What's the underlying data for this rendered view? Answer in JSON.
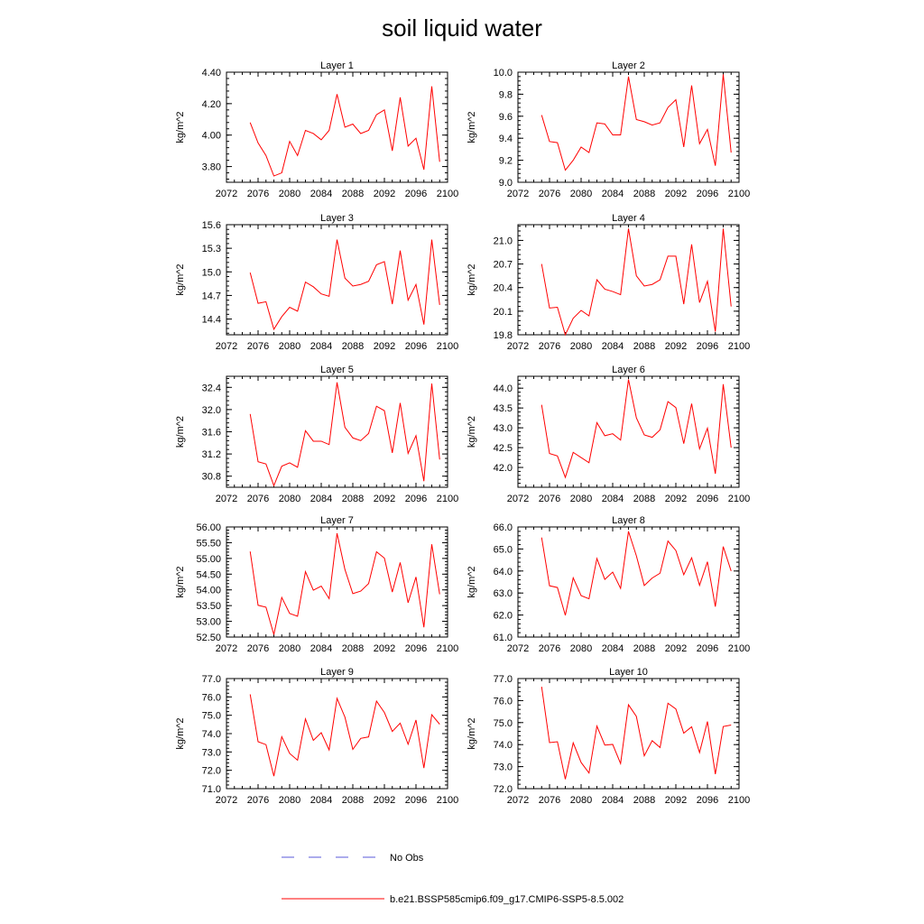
{
  "title": "soil liquid water",
  "legend": [
    {
      "label": "No Obs",
      "color": "#5a5ad8",
      "dash": "dashed"
    },
    {
      "label": "b.e21.BSSP585cmip6.f09_g17.CMIP6-SSP5-8.5.002",
      "color": "#ff0000",
      "dash": "solid"
    }
  ],
  "chart_data": [
    {
      "type": "line",
      "title": "Layer 1",
      "ylabel": "kg/m^2",
      "xlim": [
        2072,
        2100
      ],
      "ylim": [
        3.7,
        4.4
      ],
      "xticks": [
        "2072",
        "2076",
        "2080",
        "2084",
        "2088",
        "2092",
        "2096",
        "2100"
      ],
      "yticks": [
        "3.80",
        "4.00",
        "4.20",
        "4.40"
      ],
      "x": [
        2075,
        2076,
        2077,
        2078,
        2079,
        2080,
        2081,
        2082,
        2083,
        2084,
        2085,
        2086,
        2087,
        2088,
        2089,
        2090,
        2091,
        2092,
        2093,
        2094,
        2095,
        2096,
        2097,
        2098,
        2099
      ],
      "series": [
        {
          "name": "b.e21.BSSP585cmip6.f09_g17.CMIP6-SSP5-8.5.002",
          "color": "#ff0000",
          "values": [
            4.08,
            3.95,
            3.87,
            3.74,
            3.76,
            3.96,
            3.87,
            4.03,
            4.01,
            3.97,
            4.03,
            4.26,
            4.05,
            4.07,
            4.01,
            4.03,
            4.13,
            4.16,
            3.9,
            4.24,
            3.93,
            3.98,
            3.78,
            4.31,
            3.83
          ]
        }
      ]
    },
    {
      "type": "line",
      "title": "Layer 2",
      "ylabel": "kg/m^2",
      "xlim": [
        2072,
        2100
      ],
      "ylim": [
        9.0,
        10.0
      ],
      "xticks": [
        "2072",
        "2076",
        "2080",
        "2084",
        "2088",
        "2092",
        "2096",
        "2100"
      ],
      "yticks": [
        "9.0",
        "9.2",
        "9.4",
        "9.6",
        "9.8",
        "10.0"
      ],
      "x": [
        2075,
        2076,
        2077,
        2078,
        2079,
        2080,
        2081,
        2082,
        2083,
        2084,
        2085,
        2086,
        2087,
        2088,
        2089,
        2090,
        2091,
        2092,
        2093,
        2094,
        2095,
        2096,
        2097,
        2098,
        2099
      ],
      "series": [
        {
          "name": "b.e21.BSSP585cmip6.f09_g17.CMIP6-SSP5-8.5.002",
          "color": "#ff0000",
          "values": [
            9.61,
            9.37,
            9.36,
            9.11,
            9.2,
            9.32,
            9.27,
            9.54,
            9.53,
            9.43,
            9.43,
            9.96,
            9.57,
            9.55,
            9.52,
            9.54,
            9.68,
            9.75,
            9.32,
            9.88,
            9.35,
            9.48,
            9.15,
            9.98,
            9.27
          ]
        }
      ]
    },
    {
      "type": "line",
      "title": "Layer 3",
      "ylabel": "kg/m^2",
      "xlim": [
        2072,
        2100
      ],
      "ylim": [
        14.2,
        15.6
      ],
      "xticks": [
        "2072",
        "2076",
        "2080",
        "2084",
        "2088",
        "2092",
        "2096",
        "2100"
      ],
      "yticks": [
        "14.4",
        "14.7",
        "15.0",
        "15.3",
        "15.6"
      ],
      "x": [
        2075,
        2076,
        2077,
        2078,
        2079,
        2080,
        2081,
        2082,
        2083,
        2084,
        2085,
        2086,
        2087,
        2088,
        2089,
        2090,
        2091,
        2092,
        2093,
        2094,
        2095,
        2096,
        2097,
        2098,
        2099
      ],
      "series": [
        {
          "name": "b.e21.BSSP585cmip6.f09_g17.CMIP6-SSP5-8.5.002",
          "color": "#ff0000",
          "values": [
            14.99,
            14.6,
            14.62,
            14.27,
            14.43,
            14.55,
            14.5,
            14.87,
            14.81,
            14.72,
            14.69,
            15.41,
            14.92,
            14.82,
            14.84,
            14.88,
            15.09,
            15.13,
            14.59,
            15.27,
            14.64,
            14.84,
            14.33,
            15.41,
            14.58
          ]
        }
      ]
    },
    {
      "type": "line",
      "title": "Layer 4",
      "ylabel": "kg/m^2",
      "xlim": [
        2072,
        2100
      ],
      "ylim": [
        19.8,
        21.2
      ],
      "xticks": [
        "2072",
        "2076",
        "2080",
        "2084",
        "2088",
        "2092",
        "2096",
        "2100"
      ],
      "yticks": [
        "19.8",
        "20.1",
        "20.4",
        "20.7",
        "21.0"
      ],
      "x": [
        2075,
        2076,
        2077,
        2078,
        2079,
        2080,
        2081,
        2082,
        2083,
        2084,
        2085,
        2086,
        2087,
        2088,
        2089,
        2090,
        2091,
        2092,
        2093,
        2094,
        2095,
        2096,
        2097,
        2098,
        2099
      ],
      "series": [
        {
          "name": "b.e21.BSSP585cmip6.f09_g17.CMIP6-SSP5-8.5.002",
          "color": "#ff0000",
          "values": [
            20.7,
            20.14,
            20.15,
            19.8,
            20.01,
            20.11,
            20.04,
            20.5,
            20.38,
            20.35,
            20.31,
            21.15,
            20.55,
            20.42,
            20.44,
            20.5,
            20.8,
            20.8,
            20.19,
            20.95,
            20.21,
            20.48,
            19.84,
            21.15,
            20.16
          ]
        }
      ]
    },
    {
      "type": "line",
      "title": "Layer 5",
      "ylabel": "kg/m^2",
      "xlim": [
        2072,
        2100
      ],
      "ylim": [
        30.6,
        32.6
      ],
      "xticks": [
        "2072",
        "2076",
        "2080",
        "2084",
        "2088",
        "2092",
        "2096",
        "2100"
      ],
      "yticks": [
        "30.8",
        "31.2",
        "31.6",
        "32.0",
        "32.4"
      ],
      "x": [
        2075,
        2076,
        2077,
        2078,
        2079,
        2080,
        2081,
        2082,
        2083,
        2084,
        2085,
        2086,
        2087,
        2088,
        2089,
        2090,
        2091,
        2092,
        2093,
        2094,
        2095,
        2096,
        2097,
        2098,
        2099
      ],
      "series": [
        {
          "name": "b.e21.BSSP585cmip6.f09_g17.CMIP6-SSP5-8.5.002",
          "color": "#ff0000",
          "values": [
            31.92,
            31.06,
            31.02,
            30.63,
            30.98,
            31.04,
            30.96,
            31.62,
            31.43,
            31.43,
            31.37,
            32.49,
            31.68,
            31.49,
            31.44,
            31.57,
            32.06,
            31.98,
            31.22,
            32.12,
            31.21,
            31.53,
            30.71,
            32.47,
            31.1
          ]
        }
      ]
    },
    {
      "type": "line",
      "title": "Layer 6",
      "ylabel": "kg/m^2",
      "xlim": [
        2072,
        2100
      ],
      "ylim": [
        41.5,
        44.3
      ],
      "xticks": [
        "2072",
        "2076",
        "2080",
        "2084",
        "2088",
        "2092",
        "2096",
        "2100"
      ],
      "yticks": [
        "42.0",
        "42.5",
        "43.0",
        "43.5",
        "44.0"
      ],
      "x": [
        2075,
        2076,
        2077,
        2078,
        2079,
        2080,
        2081,
        2082,
        2083,
        2084,
        2085,
        2086,
        2087,
        2088,
        2089,
        2090,
        2091,
        2092,
        2093,
        2094,
        2095,
        2096,
        2097,
        2098,
        2099
      ],
      "series": [
        {
          "name": "b.e21.BSSP585cmip6.f09_g17.CMIP6-SSP5-8.5.002",
          "color": "#ff0000",
          "values": [
            43.58,
            42.35,
            42.29,
            41.75,
            42.38,
            42.25,
            42.12,
            43.13,
            42.8,
            42.85,
            42.69,
            44.22,
            43.25,
            42.82,
            42.76,
            42.95,
            43.66,
            43.51,
            42.6,
            43.61,
            42.47,
            42.99,
            41.84,
            44.1,
            42.5
          ]
        }
      ]
    },
    {
      "type": "line",
      "title": "Layer 7",
      "ylabel": "kg/m^2",
      "xlim": [
        2072,
        2100
      ],
      "ylim": [
        52.5,
        56.0
      ],
      "xticks": [
        "2072",
        "2076",
        "2080",
        "2084",
        "2088",
        "2092",
        "2096",
        "2100"
      ],
      "yticks": [
        "52.50",
        "53.00",
        "53.50",
        "54.00",
        "54.50",
        "55.00",
        "55.50",
        "56.00"
      ],
      "x": [
        2075,
        2076,
        2077,
        2078,
        2079,
        2080,
        2081,
        2082,
        2083,
        2084,
        2085,
        2086,
        2087,
        2088,
        2089,
        2090,
        2091,
        2092,
        2093,
        2094,
        2095,
        2096,
        2097,
        2098,
        2099
      ],
      "series": [
        {
          "name": "b.e21.BSSP585cmip6.f09_g17.CMIP6-SSP5-8.5.002",
          "color": "#ff0000",
          "values": [
            55.22,
            53.51,
            53.45,
            52.58,
            53.76,
            53.25,
            53.16,
            54.58,
            53.99,
            54.12,
            53.72,
            55.8,
            54.65,
            53.88,
            53.96,
            54.2,
            55.21,
            55.01,
            53.93,
            54.87,
            53.59,
            54.41,
            52.81,
            55.45,
            53.86
          ]
        }
      ]
    },
    {
      "type": "line",
      "title": "Layer 8",
      "ylabel": "kg/m^2",
      "xlim": [
        2072,
        2100
      ],
      "ylim": [
        61.0,
        66.0
      ],
      "xticks": [
        "2072",
        "2076",
        "2080",
        "2084",
        "2088",
        "2092",
        "2096",
        "2100"
      ],
      "yticks": [
        "61.0",
        "62.0",
        "63.0",
        "64.0",
        "65.0",
        "66.0"
      ],
      "x": [
        2075,
        2076,
        2077,
        2078,
        2079,
        2080,
        2081,
        2082,
        2083,
        2084,
        2085,
        2086,
        2087,
        2088,
        2089,
        2090,
        2091,
        2092,
        2093,
        2094,
        2095,
        2096,
        2097,
        2098,
        2099
      ],
      "series": [
        {
          "name": "b.e21.BSSP585cmip6.f09_g17.CMIP6-SSP5-8.5.002",
          "color": "#ff0000",
          "values": [
            65.52,
            63.33,
            63.25,
            61.99,
            63.69,
            62.88,
            62.74,
            64.57,
            63.62,
            63.95,
            63.21,
            65.8,
            64.69,
            63.34,
            63.68,
            63.9,
            65.36,
            64.93,
            63.83,
            64.6,
            63.35,
            64.42,
            62.38,
            65.11,
            64.0
          ]
        }
      ]
    },
    {
      "type": "line",
      "title": "Layer 9",
      "ylabel": "kg/m^2",
      "xlim": [
        2072,
        2100
      ],
      "ylim": [
        71.0,
        77.0
      ],
      "xticks": [
        "2072",
        "2076",
        "2080",
        "2084",
        "2088",
        "2092",
        "2096",
        "2100"
      ],
      "yticks": [
        "71.0",
        "72.0",
        "73.0",
        "74.0",
        "75.0",
        "76.0",
        "77.0"
      ],
      "x": [
        2075,
        2076,
        2077,
        2078,
        2079,
        2080,
        2081,
        2082,
        2083,
        2084,
        2085,
        2086,
        2087,
        2088,
        2089,
        2090,
        2091,
        2092,
        2093,
        2094,
        2095,
        2096,
        2097,
        2098,
        2099
      ],
      "series": [
        {
          "name": "b.e21.BSSP585cmip6.f09_g17.CMIP6-SSP5-8.5.002",
          "color": "#ff0000",
          "values": [
            76.14,
            73.56,
            73.4,
            71.68,
            73.83,
            72.92,
            72.55,
            74.8,
            73.63,
            74.05,
            73.11,
            75.92,
            74.9,
            73.14,
            73.74,
            73.82,
            75.77,
            75.15,
            74.12,
            74.57,
            73.42,
            74.74,
            72.12,
            75.03,
            74.51
          ]
        }
      ]
    },
    {
      "type": "line",
      "title": "Layer 10",
      "ylabel": "kg/m^2",
      "xlim": [
        2072,
        2100
      ],
      "ylim": [
        72.0,
        77.0
      ],
      "xticks": [
        "2072",
        "2076",
        "2080",
        "2084",
        "2088",
        "2092",
        "2096",
        "2100"
      ],
      "yticks": [
        "72.0",
        "73.0",
        "74.0",
        "75.0",
        "76.0",
        "77.0"
      ],
      "x": [
        2075,
        2076,
        2077,
        2078,
        2079,
        2080,
        2081,
        2082,
        2083,
        2084,
        2085,
        2086,
        2087,
        2088,
        2089,
        2090,
        2091,
        2092,
        2093,
        2094,
        2095,
        2096,
        2097,
        2098,
        2099
      ],
      "series": [
        {
          "name": "b.e21.BSSP585cmip6.f09_g17.CMIP6-SSP5-8.5.002",
          "color": "#ff0000",
          "values": [
            76.63,
            74.09,
            74.13,
            72.43,
            74.08,
            73.19,
            72.71,
            74.84,
            73.98,
            74.01,
            73.14,
            75.81,
            75.28,
            73.49,
            74.18,
            73.87,
            75.88,
            75.62,
            74.52,
            74.81,
            73.64,
            75.05,
            72.66,
            74.82,
            74.89
          ]
        }
      ]
    }
  ]
}
